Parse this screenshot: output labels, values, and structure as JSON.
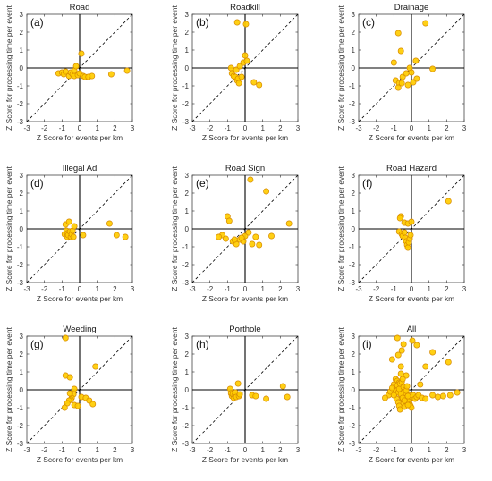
{
  "colors": {
    "marker_fill": "#ffcc00",
    "marker_stroke": "#d68a00",
    "axis": "#000000",
    "diagonal": "#000000",
    "frame": "#444444"
  },
  "chart_data": [
    {
      "type": "scatter",
      "panel": "(a)",
      "title": "Road",
      "xlabel": "Z Score for events per km",
      "ylabel": "Z Score for processing time per event",
      "xlim": [
        -3,
        3
      ],
      "ylim": [
        -3,
        3
      ],
      "xticks": [
        -3,
        -2,
        -1,
        0,
        1,
        2,
        3
      ],
      "yticks": [
        -3,
        -2,
        -1,
        0,
        1,
        2,
        3
      ],
      "grid": false,
      "reference_line": "y = x dashed",
      "x": [
        -1.2,
        -1.0,
        -0.9,
        -0.8,
        -0.6,
        -0.5,
        -0.4,
        -0.3,
        -0.3,
        -0.2,
        -0.1,
        0.0,
        0.1,
        0.2,
        0.3,
        0.5,
        0.7,
        1.8,
        2.7
      ],
      "y": [
        -0.3,
        -0.25,
        -0.35,
        -0.2,
        -0.45,
        -0.25,
        -0.35,
        -0.45,
        -0.15,
        0.1,
        -0.4,
        -0.3,
        0.8,
        -0.45,
        -0.5,
        -0.5,
        -0.45,
        -0.35,
        -0.15
      ]
    },
    {
      "type": "scatter",
      "panel": "(b)",
      "title": "Roadkill",
      "xlabel": "Z Score for events per km",
      "ylabel": "Z Score for processing time per event",
      "xlim": [
        -3,
        3
      ],
      "ylim": [
        -3,
        3
      ],
      "xticks": [
        -3,
        -2,
        -1,
        0,
        1,
        2,
        3
      ],
      "yticks": [
        -3,
        -2,
        -1,
        0,
        1,
        2,
        3
      ],
      "grid": false,
      "reference_line": "y = x dashed",
      "x": [
        -0.45,
        0.05,
        -0.8,
        -0.75,
        -0.65,
        -0.55,
        -0.5,
        -0.45,
        -0.4,
        -0.35,
        -0.3,
        -0.2,
        -0.1,
        0.0,
        0.1,
        0.5,
        0.8
      ],
      "y": [
        2.55,
        2.45,
        0.0,
        -0.3,
        -0.45,
        -0.5,
        -0.1,
        -0.7,
        -0.6,
        -0.85,
        0.1,
        -0.5,
        0.3,
        0.7,
        0.4,
        -0.8,
        -0.95
      ]
    },
    {
      "type": "scatter",
      "panel": "(c)",
      "title": "Drainage",
      "xlabel": "Z Score for events per km",
      "ylabel": "Z Score for processing time per event",
      "xlim": [
        -3,
        3
      ],
      "ylim": [
        -3,
        3
      ],
      "xticks": [
        -3,
        -2,
        -1,
        0,
        1,
        2,
        3
      ],
      "yticks": [
        -3,
        -2,
        -1,
        0,
        1,
        2,
        3
      ],
      "grid": false,
      "reference_line": "y = x dashed",
      "x": [
        -0.75,
        0.8,
        -0.6,
        -1.0,
        -0.9,
        -0.7,
        -0.75,
        -0.55,
        -0.5,
        -0.1,
        0.0,
        0.1,
        0.25,
        0.3,
        -0.3,
        1.2,
        -0.2
      ],
      "y": [
        1.95,
        2.5,
        0.95,
        0.3,
        -0.7,
        -0.85,
        -1.1,
        -0.85,
        -0.5,
        0.0,
        -0.25,
        -0.8,
        0.4,
        -0.6,
        -0.3,
        -0.05,
        -0.95
      ]
    },
    {
      "type": "scatter",
      "panel": "(d)",
      "title": "Illegal Ad",
      "xlabel": "Z Score for events per km",
      "ylabel": "Z Score for processing time per event",
      "xlim": [
        -3,
        3
      ],
      "ylim": [
        -3,
        3
      ],
      "xticks": [
        -3,
        -2,
        -1,
        0,
        1,
        2,
        3
      ],
      "yticks": [
        -3,
        -2,
        -1,
        0,
        1,
        2,
        3
      ],
      "grid": false,
      "reference_line": "y = x dashed",
      "x": [
        -0.85,
        -0.8,
        -0.75,
        -0.7,
        -0.7,
        -0.65,
        -0.6,
        -0.55,
        -0.5,
        -0.45,
        -0.4,
        -0.35,
        -0.3,
        0.2,
        1.7,
        2.1,
        2.6
      ],
      "y": [
        -0.3,
        0.25,
        -0.1,
        -0.45,
        -0.25,
        -0.35,
        0.4,
        -0.15,
        -0.45,
        -0.3,
        -0.1,
        -0.45,
        0.15,
        -0.35,
        0.3,
        -0.35,
        -0.45
      ]
    },
    {
      "type": "scatter",
      "panel": "(e)",
      "title": "Road Sign",
      "xlabel": "Z Score for events per km",
      "ylabel": "Z Score for processing time per event",
      "xlim": [
        -3,
        3
      ],
      "ylim": [
        -3,
        3
      ],
      "xticks": [
        -3,
        -2,
        -1,
        0,
        1,
        2,
        3
      ],
      "yticks": [
        -3,
        -2,
        -1,
        0,
        1,
        2,
        3
      ],
      "grid": false,
      "reference_line": "y = x dashed",
      "x": [
        0.3,
        1.2,
        -1.0,
        -1.3,
        -1.5,
        -1.1,
        -0.9,
        -0.7,
        -0.5,
        -0.3,
        -0.1,
        0.0,
        0.2,
        0.4,
        0.6,
        0.8,
        1.5,
        2.5,
        -0.6,
        -0.2
      ],
      "y": [
        2.75,
        2.1,
        0.7,
        -0.35,
        -0.45,
        -0.55,
        0.45,
        -0.7,
        -0.85,
        -0.6,
        -0.7,
        -0.4,
        -0.2,
        -0.85,
        -0.45,
        -0.9,
        -0.4,
        0.3,
        -0.6,
        -0.5
      ]
    },
    {
      "type": "scatter",
      "panel": "(f)",
      "title": "Road Hazard",
      "xlabel": "Z Score for events per km",
      "ylabel": "Z Score for processing time per event",
      "xlim": [
        -3,
        3
      ],
      "ylim": [
        -3,
        3
      ],
      "xticks": [
        -3,
        -2,
        -1,
        0,
        1,
        2,
        3
      ],
      "yticks": [
        -3,
        -2,
        -1,
        0,
        1,
        2,
        3
      ],
      "grid": false,
      "reference_line": "y = x dashed",
      "x": [
        2.1,
        -0.6,
        -0.65,
        -0.4,
        -0.2,
        -0.7,
        -0.55,
        -0.5,
        -0.4,
        -0.35,
        -0.3,
        -0.25,
        -0.2,
        -0.15,
        -0.1,
        -0.05,
        0.0
      ],
      "y": [
        1.55,
        0.7,
        0.6,
        0.35,
        0.3,
        -0.15,
        -0.3,
        -0.4,
        -0.2,
        -0.5,
        -0.7,
        -0.9,
        -1.05,
        -0.75,
        -0.55,
        -0.35,
        0.4
      ]
    },
    {
      "type": "scatter",
      "panel": "(g)",
      "title": "Weeding",
      "xlabel": "Z Score for events per km",
      "ylabel": "Z Score for processing time per event",
      "xlim": [
        -3,
        3
      ],
      "ylim": [
        -3,
        3
      ],
      "xticks": [
        -3,
        -2,
        -1,
        0,
        1,
        2,
        3
      ],
      "yticks": [
        -3,
        -2,
        -1,
        0,
        1,
        2,
        3
      ],
      "grid": false,
      "reference_line": "y = x dashed",
      "x": [
        -0.8,
        -0.8,
        -0.55,
        -0.3,
        -0.35,
        -0.45,
        -0.5,
        -0.55,
        -0.6,
        -0.7,
        -0.85,
        -0.3,
        -0.1,
        0.1,
        0.35,
        0.55,
        0.75,
        0.9
      ],
      "y": [
        2.9,
        0.8,
        0.7,
        0.05,
        -0.25,
        -0.45,
        -0.55,
        -0.2,
        -0.6,
        -0.75,
        -1.0,
        -0.85,
        -0.9,
        -0.4,
        -0.45,
        -0.6,
        -0.8,
        1.3
      ]
    },
    {
      "type": "scatter",
      "panel": "(h)",
      "title": "Porthole",
      "xlabel": "Z Score for events per km",
      "ylabel": "Z Score for processing time per event",
      "xlim": [
        -3,
        3
      ],
      "ylim": [
        -3,
        3
      ],
      "xticks": [
        -3,
        -2,
        -1,
        0,
        1,
        2,
        3
      ],
      "yticks": [
        -3,
        -2,
        -1,
        0,
        1,
        2,
        3
      ],
      "grid": false,
      "reference_line": "y = x dashed",
      "x": [
        -0.85,
        -0.8,
        -0.75,
        -0.7,
        -0.65,
        -0.6,
        -0.55,
        -0.5,
        -0.4,
        -0.35,
        -0.3,
        0.4,
        0.6,
        1.2,
        2.15,
        2.4
      ],
      "y": [
        0.05,
        -0.2,
        -0.35,
        -0.25,
        -0.45,
        -0.3,
        -0.15,
        -0.4,
        0.35,
        -0.35,
        -0.25,
        -0.3,
        -0.35,
        -0.5,
        0.2,
        -0.4
      ]
    },
    {
      "type": "scatter",
      "panel": "(i)",
      "title": "All",
      "xlabel": "Z Score for events per km",
      "ylabel": "Z Score for processing time per event",
      "xlim": [
        -3,
        3
      ],
      "ylim": [
        -3,
        3
      ],
      "xticks": [
        -3,
        -2,
        -1,
        0,
        1,
        2,
        3
      ],
      "yticks": [
        -3,
        -2,
        -1,
        0,
        1,
        2,
        3
      ],
      "grid": false,
      "reference_line": "y = x dashed",
      "x": [
        -0.8,
        0.05,
        -0.45,
        0.3,
        -0.55,
        1.2,
        -0.75,
        -1.1,
        -0.6,
        0.8,
        -0.6,
        -0.3,
        2.1,
        -0.9,
        -0.8,
        -0.7,
        -0.65,
        -0.6,
        -0.55,
        -0.5,
        -0.45,
        -0.4,
        -0.35,
        -0.3,
        -0.25,
        -0.2,
        -0.15,
        -0.1,
        -0.05,
        0.0,
        -1.0,
        -1.3,
        -1.5,
        -0.95,
        -0.85,
        -0.75,
        -0.7,
        -0.65,
        -0.6,
        -0.55,
        -0.5,
        -0.45,
        -0.4,
        -0.35,
        -0.3,
        -0.25,
        -0.2,
        -0.15,
        -0.1,
        0.0,
        0.1,
        0.2,
        0.3,
        0.4,
        0.6,
        0.8,
        1.2,
        1.5,
        1.8,
        2.2,
        2.6,
        -0.9,
        -0.85,
        -0.8,
        -0.75,
        -0.7,
        -0.65,
        -0.6,
        -0.55,
        -0.5,
        -0.45,
        -0.4,
        -0.35,
        -0.3,
        -0.25,
        -0.2,
        -1.2,
        -1.1,
        -1.0,
        -0.5,
        0.5
      ],
      "y": [
        2.9,
        2.75,
        2.55,
        2.5,
        2.2,
        2.1,
        1.95,
        1.7,
        1.3,
        1.3,
        0.9,
        0.8,
        1.55,
        0.6,
        0.5,
        0.4,
        0.3,
        0.2,
        0.1,
        0.0,
        -0.1,
        -0.2,
        -0.3,
        -0.4,
        -0.5,
        -0.6,
        -0.7,
        -0.8,
        -0.9,
        -1.0,
        0.3,
        -0.3,
        -0.45,
        -0.2,
        -0.5,
        -0.7,
        -0.9,
        -1.1,
        -0.15,
        -0.35,
        -0.55,
        -0.75,
        -0.95,
        -0.25,
        -0.45,
        -0.65,
        -0.85,
        -0.3,
        -0.5,
        -0.4,
        -0.3,
        -0.5,
        -0.4,
        -0.3,
        -0.45,
        -0.5,
        -0.3,
        -0.4,
        -0.35,
        -0.3,
        -0.15,
        0.15,
        -0.05,
        0.25,
        -0.15,
        0.05,
        0.35,
        -0.25,
        0.45,
        -0.45,
        0.15,
        -0.6,
        0.0,
        -0.05,
        0.2,
        -0.35,
        -0.1,
        0.1,
        -0.3,
        0.6,
        0.3
      ]
    }
  ]
}
